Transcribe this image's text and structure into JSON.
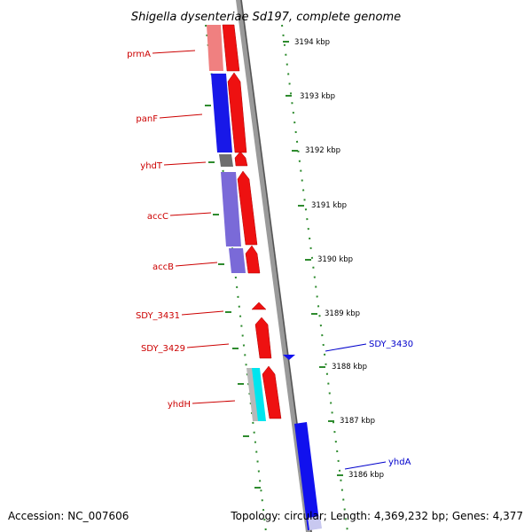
{
  "title": "Shigella dysenteriae Sd197, complete genome",
  "footer": {
    "accession": "Accession: NC_007606",
    "summary": "Topology: circular; Length: 4,369,232 bp; Genes: 4,377"
  },
  "ticks": [
    "3194 kbp",
    "3193 kbp",
    "3192 kbp",
    "3191 kbp",
    "3190 kbp",
    "3189 kbp",
    "3188 kbp",
    "3187 kbp",
    "3186 kbp"
  ],
  "genes_reverse": [
    "prmA",
    "panF",
    "yhdT",
    "accC",
    "accB",
    "SDY_3431",
    "SDY_3429",
    "yhdH"
  ],
  "genes_forward": [
    "SDY_3430",
    "yhdA"
  ],
  "colors": {
    "backbone": "#8a8a8a",
    "strand_arrow": "#ee1111",
    "reverse_label": "#cc0000",
    "forward_label": "#0000cc",
    "forward_gene": "#1111ee",
    "ruler_dots": "#2e8b2e",
    "cog_pink": "#f08080",
    "cog_blue": "#1818e8",
    "cog_gray": "#6e6e6e",
    "cog_purple": "#7a6ad8",
    "cog_cyan": "#00e5ee",
    "cog_lightgray": "#b8b8b8"
  }
}
